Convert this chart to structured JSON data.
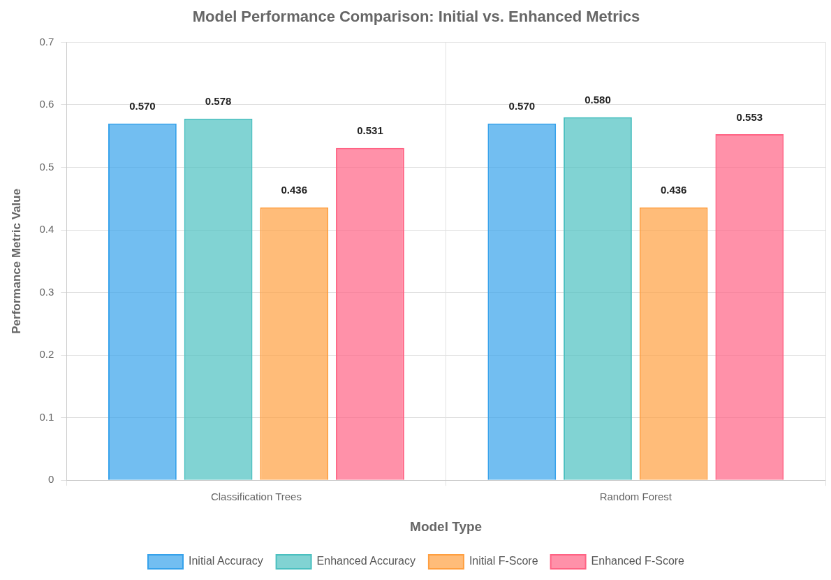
{
  "chart_data": {
    "type": "bar",
    "title": "Model Performance Comparison: Initial vs. Enhanced Metrics",
    "xlabel": "Model Type",
    "ylabel": "Performance Metric Value",
    "categories": [
      "Classification Trees",
      "Random Forest"
    ],
    "series": [
      {
        "name": "Initial Accuracy",
        "color": "#36a2eb",
        "values": [
          0.57,
          0.57
        ],
        "value_labels": [
          "0.570",
          "0.570"
        ]
      },
      {
        "name": "Enhanced Accuracy",
        "color": "#4bc0c0",
        "values": [
          0.578,
          0.58
        ],
        "value_labels": [
          "0.578",
          "0.580"
        ]
      },
      {
        "name": "Initial F-Score",
        "color": "#ff9f40",
        "values": [
          0.436,
          0.436
        ],
        "value_labels": [
          "0.436",
          "0.436"
        ]
      },
      {
        "name": "Enhanced F-Score",
        "color": "#ff6384",
        "values": [
          0.531,
          0.553
        ],
        "value_labels": [
          "0.531",
          "0.553"
        ]
      }
    ],
    "ylim": [
      0,
      0.7
    ],
    "yticks": [
      0,
      0.1,
      0.2,
      0.3,
      0.4,
      0.5,
      0.6,
      0.7
    ],
    "grid": true,
    "legend": "bottom"
  }
}
